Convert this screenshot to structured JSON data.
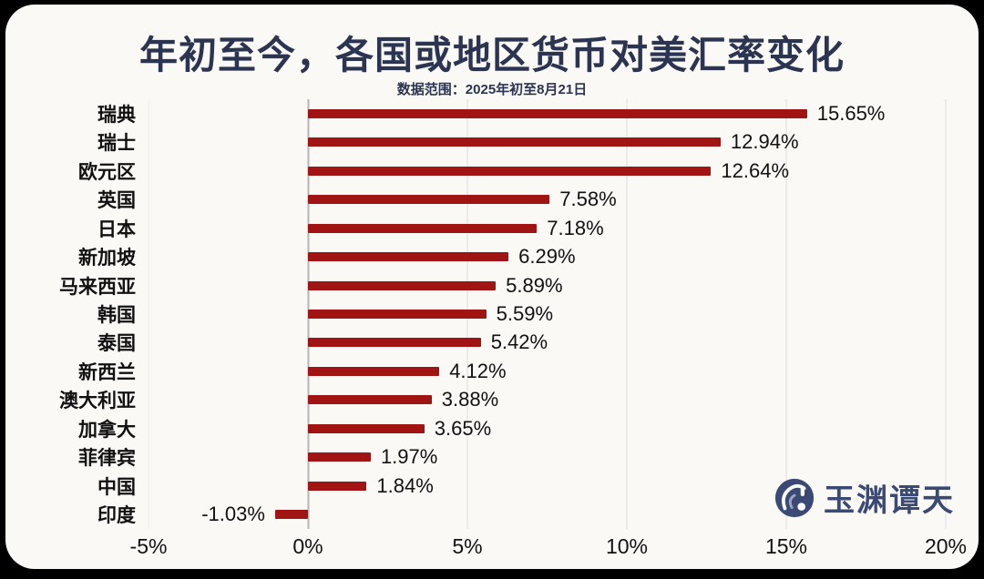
{
  "page": {
    "title": "年初至今，各国或地区货币对美汇率变化",
    "subtitle": "数据范围：2025年初至8月21日"
  },
  "colors": {
    "background": "#000000",
    "card": "#FAF9F6",
    "title": "#2B3450",
    "bar": "#A11414",
    "gridline": "#DDDDDD",
    "zero_line": "#B5B5B5",
    "label": "#111111",
    "logo": "#3B4A74"
  },
  "chart_data": {
    "type": "bar",
    "orientation": "horizontal",
    "title": "年初至今，各国或地区货币对美汇率变化",
    "subtitle": "数据范围：2025年初至8月21日",
    "categories": [
      "瑞典",
      "瑞士",
      "欧元区",
      "英国",
      "日本",
      "新加坡",
      "马来西亚",
      "韩国",
      "泰国",
      "新西兰",
      "澳大利亚",
      "加拿大",
      "菲律宾",
      "中国",
      "印度"
    ],
    "values": [
      15.65,
      12.94,
      12.64,
      7.58,
      7.18,
      6.29,
      5.89,
      5.59,
      5.42,
      4.12,
      3.88,
      3.65,
      1.97,
      1.84,
      -1.03
    ],
    "value_labels": [
      "15.65%",
      "12.94%",
      "12.64%",
      "7.58%",
      "7.18%",
      "6.29%",
      "5.89%",
      "5.59%",
      "5.42%",
      "4.12%",
      "3.88%",
      "3.65%",
      "1.97%",
      "1.84%",
      "-1.03%"
    ],
    "xlabel": "",
    "ylabel": "",
    "xlim": [
      -5,
      20
    ],
    "x_tick_values": [
      -5,
      0,
      5,
      10,
      15,
      20
    ],
    "x_ticks": [
      "-5%",
      "0%",
      "5%",
      "10%",
      "15%",
      "20%"
    ],
    "grid": "vertical",
    "legend": "none"
  },
  "logo": {
    "text": "玉渊谭天",
    "icon": "yuyuantantian-swirl-icon"
  }
}
